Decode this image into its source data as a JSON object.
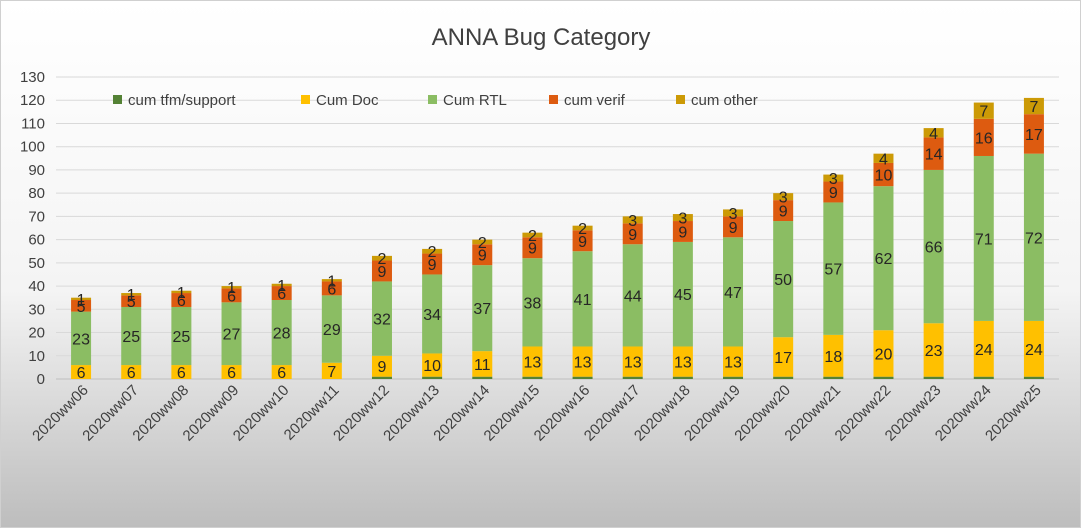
{
  "chart_data": {
    "type": "bar",
    "stacked": true,
    "title": "ANNA Bug Category",
    "xlabel": "",
    "ylabel": "",
    "ylim": [
      0,
      130
    ],
    "yticks": [
      0,
      10,
      20,
      30,
      40,
      50,
      60,
      70,
      80,
      90,
      100,
      110,
      120,
      130
    ],
    "grid": true,
    "legend_position": "top",
    "categories": [
      "2020ww06",
      "2020ww07",
      "2020ww08",
      "2020ww09",
      "2020ww10",
      "2020ww11",
      "2020ww12",
      "2020ww13",
      "2020ww14",
      "2020ww15",
      "2020ww16",
      "2020ww17",
      "2020ww18",
      "2020ww19",
      "2020ww20",
      "2020ww21",
      "2020ww22",
      "2020ww23",
      "2020ww24",
      "2020ww25"
    ],
    "series": [
      {
        "name": "cum tfm/support",
        "color": "#548235",
        "values": [
          0,
          0,
          0,
          0,
          0,
          0,
          1,
          1,
          1,
          1,
          1,
          1,
          1,
          1,
          1,
          1,
          1,
          1,
          1,
          1
        ],
        "labels": false
      },
      {
        "name": "Cum Doc",
        "color": "#ffc000",
        "values": [
          6,
          6,
          6,
          6,
          6,
          7,
          9,
          10,
          11,
          13,
          13,
          13,
          13,
          13,
          17,
          18,
          20,
          23,
          24,
          24
        ],
        "labels": true
      },
      {
        "name": "Cum RTL",
        "color": "#8bbd63",
        "values": [
          23,
          25,
          25,
          27,
          28,
          29,
          32,
          34,
          37,
          38,
          41,
          44,
          45,
          47,
          50,
          57,
          62,
          66,
          71,
          72
        ],
        "labels": true
      },
      {
        "name": "cum verif",
        "color": "#dd5b10",
        "values": [
          5,
          5,
          6,
          6,
          6,
          6,
          9,
          9,
          9,
          9,
          9,
          9,
          9,
          9,
          9,
          9,
          10,
          14,
          16,
          17
        ],
        "labels": true
      },
      {
        "name": "cum other",
        "color": "#cc9a06",
        "values": [
          1,
          1,
          1,
          1,
          1,
          1,
          2,
          2,
          2,
          2,
          2,
          3,
          3,
          3,
          3,
          3,
          4,
          4,
          7,
          7
        ],
        "labels": true
      }
    ]
  }
}
